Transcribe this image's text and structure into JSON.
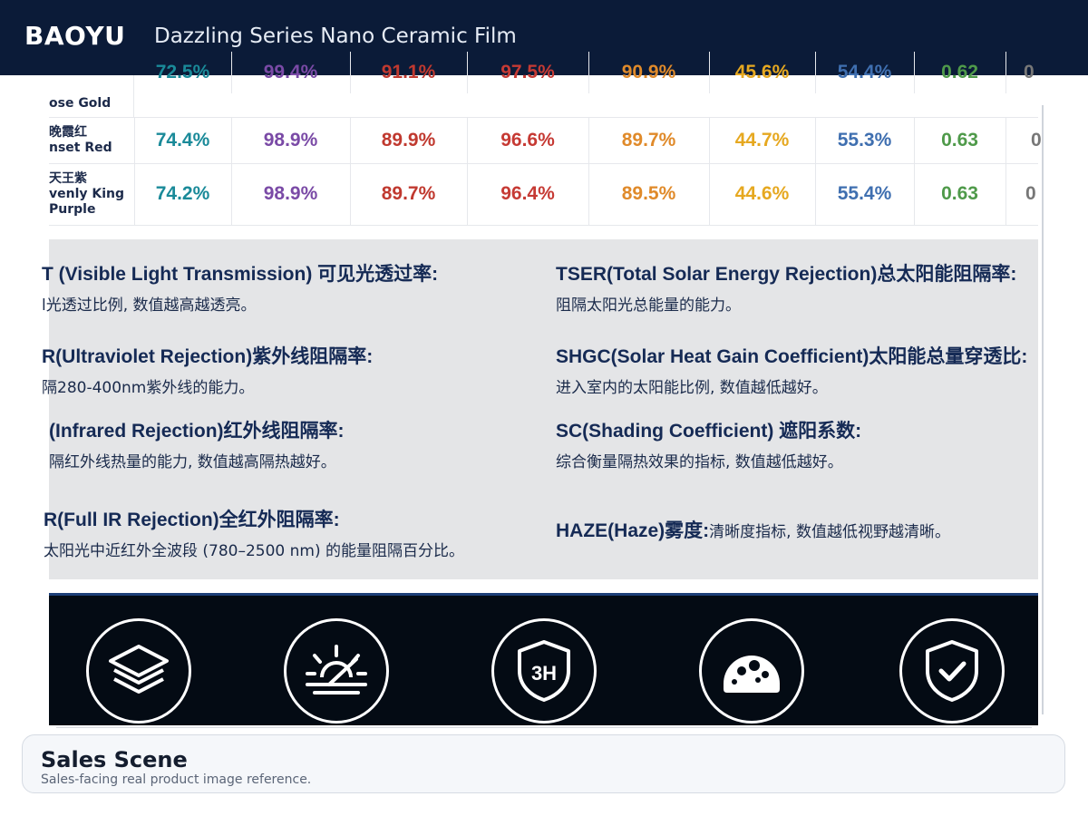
{
  "header": {
    "brand": "BAOYU",
    "title": "Dazzling Series Nano Ceramic Film"
  },
  "table": {
    "rows": [
      {
        "zh": "",
        "en": "ose Gold",
        "values": [
          "72.5%",
          "99.4%",
          "91.1%",
          "97.5%",
          "90.9%",
          "45.6%",
          "54.4%",
          "0.62",
          "0"
        ]
      },
      {
        "zh": "晚霞红",
        "en": "nset Red",
        "values": [
          "74.4%",
          "98.9%",
          "89.9%",
          "96.6%",
          "89.7%",
          "44.7%",
          "55.3%",
          "0.63",
          "0"
        ]
      },
      {
        "zh": "天王紫",
        "en": "venly King",
        "en2": "Purple",
        "values": [
          "74.2%",
          "98.9%",
          "89.7%",
          "96.4%",
          "89.5%",
          "44.6%",
          "55.4%",
          "0.63",
          "0"
        ]
      }
    ]
  },
  "definitions": {
    "vlt": {
      "term": "T (Visible Light Transmission) 可见光透过率:",
      "desc": "l光透过比例, 数值越高越透亮。"
    },
    "uvr": {
      "term": "R(Ultraviolet Rejection)紫外线阻隔率:",
      "desc": "隔280-400nm紫外线的能力。"
    },
    "irr": {
      "term": "(Infrared Rejection)红外线阻隔率:",
      "desc": "隔红外线热量的能力, 数值越高隔热越好。"
    },
    "firr": {
      "term": "R(Full IR Rejection)全红外阻隔率:",
      "desc": "太阳光中近红外全波段 (780–2500 nm) 的能量阻隔百分比。"
    },
    "tser": {
      "term": "TSER(Total Solar Energy Rejection)总太阳能阻隔率:",
      "desc": "阻隔太阳光总能量的能力。"
    },
    "shgc": {
      "term": "SHGC(Solar Heat Gain Coefficient)太阳能总量穿透比:",
      "desc": "进入室内的太阳能比例, 数值越低越好。"
    },
    "sc": {
      "term": "SC(Shading Coefficient) 遮阳系数:",
      "desc": "综合衡量隔热效果的指标, 数值越低越好。"
    },
    "haze": {
      "term": "HAZE(Haze)雾度:",
      "desc": "清晰度指标, 数值越低视野越清晰。"
    }
  },
  "feature_icons": [
    "layers-icon",
    "sunrise-icon",
    "shield-3h-icon",
    "gauge-icon",
    "shield-check-icon"
  ],
  "icon_text": {
    "shield_3h": "3H"
  },
  "scene": {
    "title": "Sales Scene",
    "subtitle": "Sales-facing real product image reference."
  },
  "colors": {
    "header_bg": "#0b1b38",
    "panel_bg": "#e4e5e7",
    "icon_band_bg": "#040b14"
  }
}
